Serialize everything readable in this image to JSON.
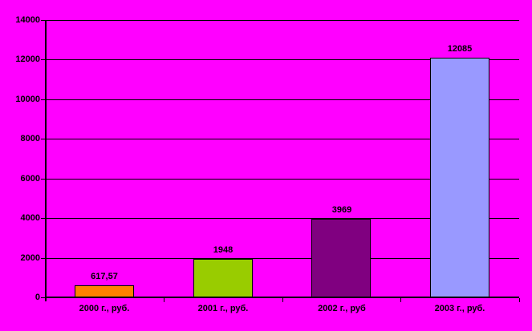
{
  "chart_data": {
    "type": "bar",
    "categories": [
      "2000 г., руб.",
      "2001 г., руб.",
      "2002 г., руб",
      "2003 г., руб."
    ],
    "values": [
      617.57,
      1948,
      3969,
      12085
    ],
    "value_labels": [
      "617,57",
      "1948",
      "3969",
      "12085"
    ],
    "bar_colors": [
      "#FF8000",
      "#99CC00",
      "#800080",
      "#9999FF"
    ],
    "background_color": "#FF00FF",
    "axis_color": "#000000",
    "text_color": "#000000",
    "title": "",
    "xlabel": "",
    "ylabel": "",
    "ylim": [
      0,
      14000
    ],
    "yticks": [
      0,
      2000,
      4000,
      6000,
      8000,
      10000,
      12000,
      14000
    ],
    "grid": true,
    "legend_position": "none"
  }
}
